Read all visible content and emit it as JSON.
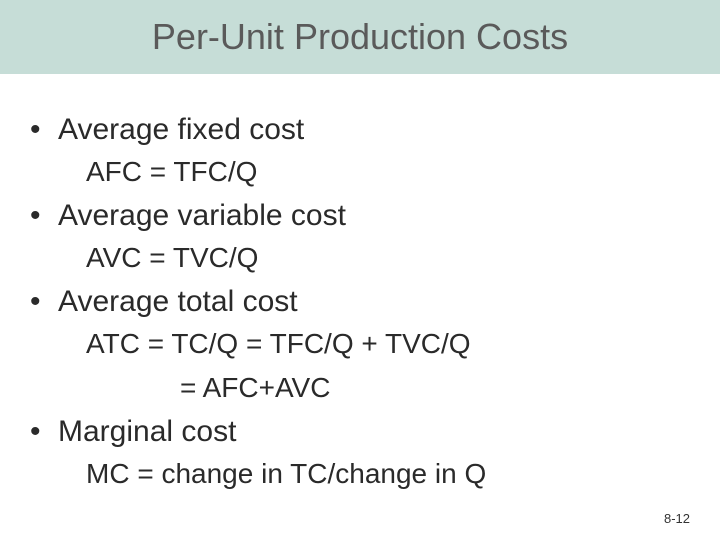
{
  "title": "Per-Unit Production Costs",
  "colors": {
    "title_bar_bg": "#c6ddd7",
    "title_text": "#5a5a5a",
    "body_text": "#2a2a2a",
    "page_bg": "#ffffff"
  },
  "typography": {
    "title_fontsize": 36,
    "bullet_fontsize": 30,
    "formula_fontsize": 28,
    "pagenum_fontsize": 13,
    "font_family": "Arial"
  },
  "items": [
    {
      "label": "Average fixed cost",
      "formula": "AFC = TFC/Q"
    },
    {
      "label": "Average variable cost",
      "formula": "AVC = TVC/Q"
    },
    {
      "label": "Average total cost",
      "formula": "ATC = TC/Q = TFC/Q + TVC/Q",
      "formula2": "= AFC+AVC"
    },
    {
      "label": "Marginal cost",
      "formula": "MC = change in TC/change in Q"
    }
  ],
  "page_number": "8-12"
}
